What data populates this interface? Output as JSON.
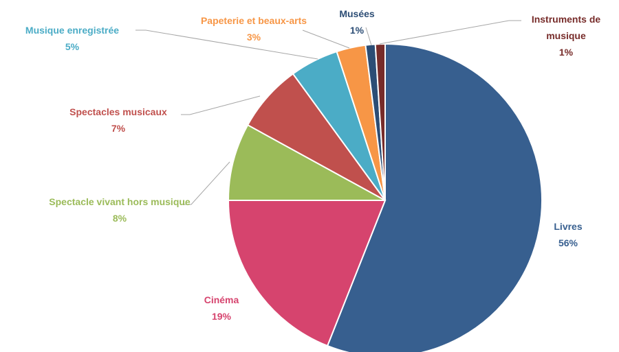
{
  "chart_data": {
    "type": "pie",
    "categories": [
      "Livres",
      "Cinéma",
      "Spectacle vivant hors musique",
      "Spectacles musicaux",
      "Musique enregistrée",
      "Papeterie et beaux-arts",
      "Musées",
      "Instruments de musique"
    ],
    "values": [
      56,
      19,
      8,
      7,
      5,
      3,
      1,
      1
    ],
    "value_labels": [
      "56%",
      "19%",
      "8%",
      "7%",
      "5%",
      "3%",
      "1%",
      "1%"
    ],
    "colors": [
      "#375f8f",
      "#d6446e",
      "#9bbb59",
      "#c0504d",
      "#4bacc6",
      "#f79646",
      "#2c4d75",
      "#772c2a"
    ]
  }
}
